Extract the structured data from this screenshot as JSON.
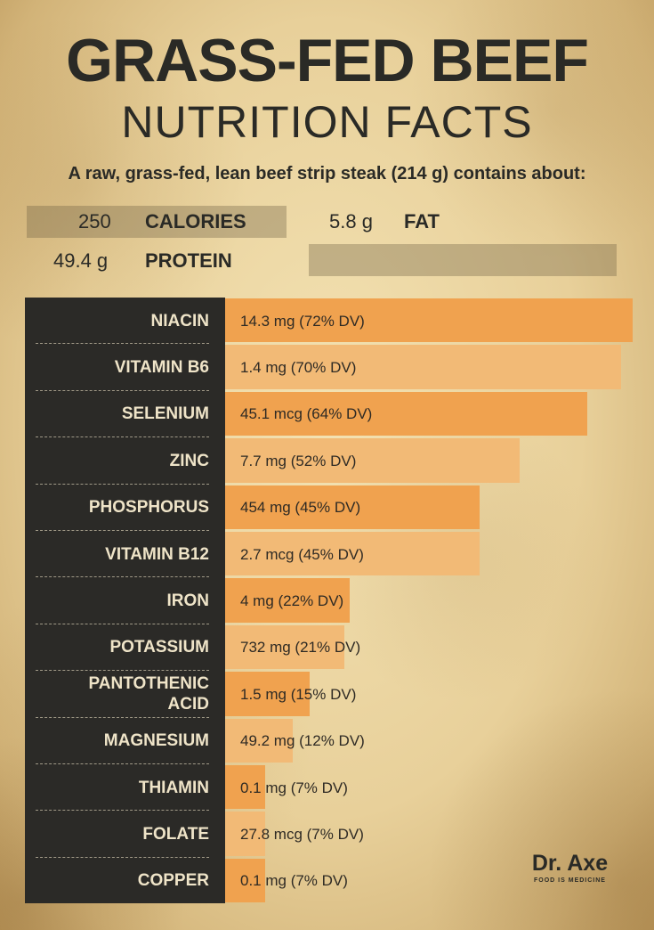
{
  "title": "GRASS-FED BEEF",
  "subtitle": "NUTRITION FACTS",
  "intro": "A raw, grass-fed, lean beef strip steak (214 g) contains about:",
  "macros": {
    "calories": {
      "value": "250",
      "label": "CALORIES"
    },
    "fat": {
      "value": "5.8 g",
      "label": "FAT"
    },
    "protein": {
      "value": "49.4 g",
      "label": "PROTEIN"
    }
  },
  "chart_data": {
    "type": "bar",
    "orientation": "horizontal",
    "title": "GRASS-FED BEEF NUTRITION FACTS",
    "categories": [
      "NIACIN",
      "VITAMIN B6",
      "SELENIUM",
      "ZINC",
      "PHOSPHORUS",
      "VITAMIN B12",
      "IRON",
      "POTASSIUM",
      "PANTOTHENIC ACID",
      "MAGNESIUM",
      "THIAMIN",
      "FOLATE",
      "COPPER"
    ],
    "label_lines": [
      [
        "NIACIN"
      ],
      [
        "VITAMIN B6"
      ],
      [
        "SELENIUM"
      ],
      [
        "ZINC"
      ],
      [
        "PHOSPHORUS"
      ],
      [
        "VITAMIN B12"
      ],
      [
        "IRON"
      ],
      [
        "POTASSIUM"
      ],
      [
        "PANTOTHENIC",
        "ACID"
      ],
      [
        "MAGNESIUM"
      ],
      [
        "THIAMIN"
      ],
      [
        "FOLATE"
      ],
      [
        "COPPER"
      ]
    ],
    "amounts": [
      "14.3 mg (72% DV)",
      "1.4 mg (70% DV)",
      "45.1 mcg (64% DV)",
      "7.7 mg (52% DV)",
      "454 mg (45% DV)",
      "2.7 mcg (45% DV)",
      "4 mg (22% DV)",
      "732 mg (21% DV)",
      "1.5 mg (15% DV)",
      "49.2 mg (12% DV)",
      "0.1 mg (7% DV)",
      "27.8 mcg (7% DV)",
      "0.1 mg (7% DV)"
    ],
    "values": [
      72,
      70,
      64,
      52,
      45,
      45,
      22,
      21,
      15,
      12,
      7,
      7,
      7
    ],
    "unit": "% DV",
    "colors": {
      "bar_a": "#f0a24f",
      "bar_b": "#f2ba76",
      "panel": "#2b2a27"
    }
  },
  "brand": {
    "name": "Dr. Axe",
    "tagline": "FOOD IS MEDICINE"
  }
}
